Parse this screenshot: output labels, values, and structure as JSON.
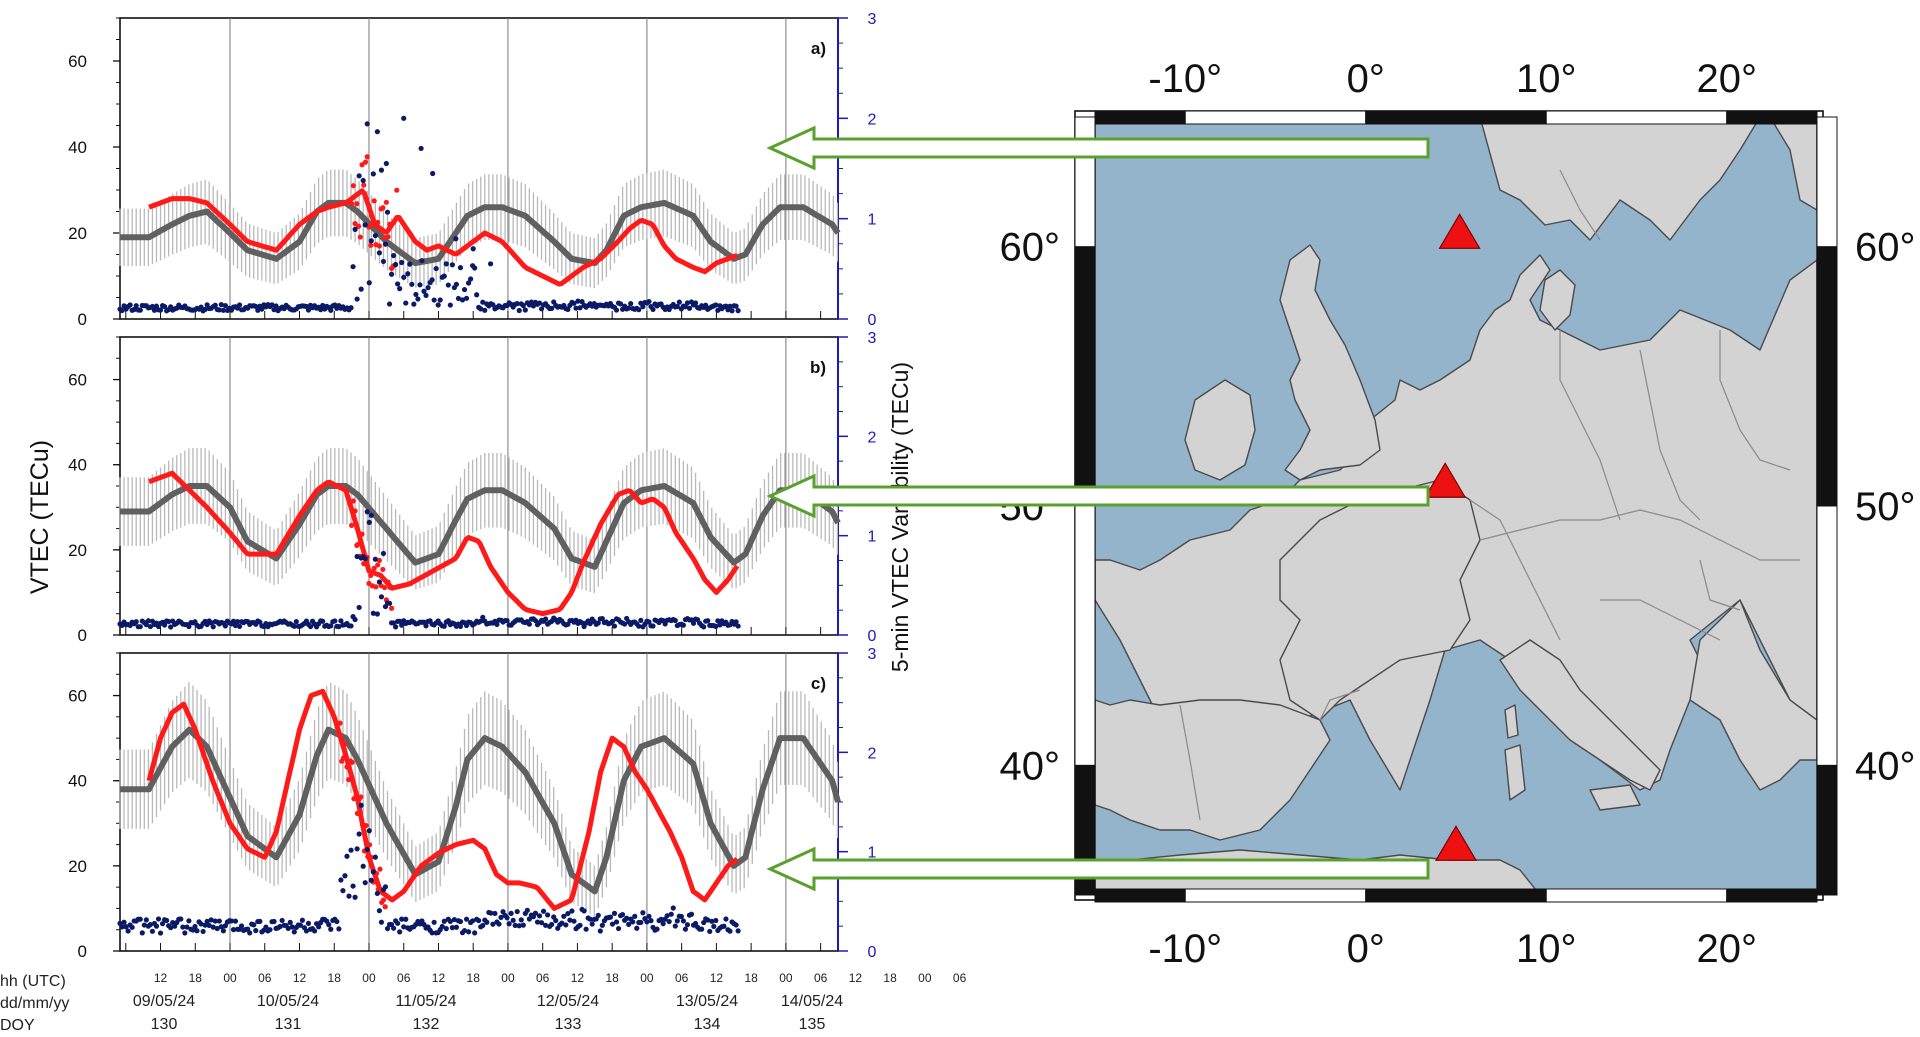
{
  "colors": {
    "vtec": "#ff1a1a",
    "median": "#606060",
    "band": "#b9b9b9",
    "variability": "#0b1a66",
    "right_axis": "#1a1ab8",
    "sea": "#94b4cc",
    "land": "#d3d3d3",
    "border": "#8a8a8a",
    "coast": "#4a4a4a",
    "arrow": "#5aa02c",
    "station": "#ee1111"
  },
  "left_chart": {
    "ylabel": "VTEC (TECu)",
    "ylabel2": "5-min VTEC Variability (TECu)",
    "xaxis_rows": [
      {
        "label": "hh (UTC)"
      },
      {
        "label": "dd/mm/yy"
      },
      {
        "label": "DOY"
      }
    ],
    "hour_ticks": [
      "12",
      "18",
      "00",
      "06",
      "12",
      "18",
      "00",
      "06",
      "12",
      "18",
      "00",
      "06",
      "12",
      "18",
      "00",
      "06",
      "12",
      "18",
      "00",
      "06",
      "12",
      "18",
      "00",
      "06"
    ],
    "day_labels": [
      {
        "date": "09/05/24",
        "doy": "130"
      },
      {
        "date": "10/05/24",
        "doy": "131"
      },
      {
        "date": "11/05/24",
        "doy": "132"
      },
      {
        "date": "12/05/24",
        "doy": "133"
      },
      {
        "date": "13/05/24",
        "doy": "134"
      },
      {
        "date": "14/05/24",
        "doy": "135"
      }
    ],
    "yticks_left": [
      "0",
      "20",
      "40",
      "60"
    ],
    "yticks_right": [
      "0",
      "1",
      "2",
      "3"
    ]
  },
  "chart_data": [
    {
      "type": "line",
      "panel_label": "a)",
      "xlabel": "hh (UTC)",
      "ylabel": "VTEC (TECu)",
      "ylabel2": "5-min VTEC Variability (TECu)",
      "x_range_hours_utc": [
        "09/05/24 05:00",
        "14/05/24 09:00"
      ],
      "ylim": [
        0,
        70
      ],
      "y2lim": [
        0,
        3
      ],
      "grid": "vertical lines at 00 UTC",
      "series": [
        {
          "name": "",
          "axis": "left",
          "kind": "median",
          "x": [
            5,
            9,
            12,
            15,
            19,
            22,
            27,
            31,
            34,
            36,
            39,
            41,
            46,
            51,
            55,
            58,
            60,
            63,
            66,
            70,
            75,
            78,
            82,
            84,
            87,
            90,
            94,
            99,
            102,
            106,
            108,
            111,
            114,
            118,
            123,
            126,
            129
          ],
          "y": [
            19,
            22,
            24,
            25,
            20,
            16,
            14,
            18,
            25,
            27,
            27,
            25,
            18,
            13,
            14,
            20,
            24,
            26,
            26,
            24,
            18,
            14,
            13,
            16,
            24,
            26,
            27,
            24,
            18,
            14,
            15,
            22,
            26,
            26,
            22,
            16,
            14
          ]
        },
        {
          "name": "",
          "axis": "left",
          "kind": "vtec",
          "x": [
            5,
            9,
            12,
            15,
            19,
            22,
            27,
            31,
            34,
            36,
            39,
            40,
            42,
            44,
            46,
            48,
            51,
            53,
            55,
            58,
            60,
            63,
            66,
            68,
            70,
            73,
            76,
            78,
            80,
            83,
            86,
            88,
            90,
            92,
            94,
            96,
            99,
            101,
            103,
            105,
            107
          ],
          "y": [
            26,
            28,
            28,
            27,
            22,
            18,
            16,
            22,
            25,
            26,
            27,
            28,
            30,
            22,
            20,
            24,
            18,
            16,
            17,
            15,
            17,
            20,
            18,
            15,
            12,
            10,
            8,
            10,
            12,
            14,
            18,
            21,
            23,
            22,
            17,
            14,
            12,
            11,
            13,
            14,
            15
          ]
        },
        {
          "name": "",
          "axis": "right",
          "kind": "variability",
          "baseline": 0.08,
          "storm_x": [
            40,
            48
          ],
          "storm_peak": 1.9
        }
      ]
    },
    {
      "type": "line",
      "panel_label": "b)",
      "x_range_hours_utc": [
        "09/05/24 05:00",
        "14/05/24 09:00"
      ],
      "ylim": [
        0,
        70
      ],
      "y2lim": [
        0,
        3
      ],
      "series": [
        {
          "name": "",
          "axis": "left",
          "kind": "median",
          "x": [
            5,
            9,
            12,
            15,
            19,
            22,
            27,
            31,
            34,
            36,
            39,
            41,
            46,
            51,
            55,
            58,
            60,
            63,
            66,
            70,
            75,
            78,
            82,
            84,
            87,
            90,
            94,
            99,
            102,
            106,
            108,
            111,
            114,
            118,
            123,
            126,
            129
          ],
          "y": [
            29,
            33,
            35,
            35,
            30,
            22,
            18,
            26,
            33,
            35,
            35,
            33,
            25,
            17,
            19,
            27,
            32,
            34,
            34,
            31,
            25,
            18,
            16,
            22,
            31,
            34,
            35,
            31,
            23,
            17,
            19,
            28,
            34,
            34,
            29,
            21,
            17
          ]
        },
        {
          "name": "",
          "axis": "left",
          "kind": "vtec",
          "x": [
            5,
            9,
            12,
            15,
            19,
            22,
            27,
            31,
            34,
            36,
            39,
            41,
            43,
            45,
            47,
            50,
            54,
            58,
            60,
            62,
            64,
            67,
            70,
            73,
            76,
            78,
            80,
            83,
            86,
            88,
            90,
            92,
            94,
            96,
            99,
            101,
            103,
            105,
            107
          ],
          "y": [
            36,
            38,
            34,
            30,
            24,
            19,
            19,
            28,
            34,
            36,
            34,
            25,
            15,
            14,
            11,
            12,
            15,
            18,
            23,
            22,
            16,
            10,
            6,
            5,
            6,
            10,
            17,
            26,
            33,
            34,
            31,
            32,
            30,
            24,
            18,
            13,
            10,
            13,
            17
          ]
        },
        {
          "name": "",
          "axis": "right",
          "kind": "variability",
          "baseline": 0.08,
          "storm_x": [
            40,
            47
          ],
          "storm_peak": 1.1
        }
      ]
    },
    {
      "type": "line",
      "panel_label": "c)",
      "x_range_hours_utc": [
        "09/05/24 05:00",
        "14/05/24 09:00"
      ],
      "ylim": [
        0,
        70
      ],
      "y2lim": [
        0,
        3
      ],
      "series": [
        {
          "name": "",
          "axis": "left",
          "kind": "median",
          "x": [
            5,
            9,
            12,
            15,
            19,
            22,
            27,
            31,
            34,
            36,
            39,
            41,
            46,
            51,
            55,
            58,
            60,
            63,
            66,
            70,
            75,
            78,
            82,
            84,
            87,
            90,
            94,
            99,
            102,
            106,
            108,
            111,
            114,
            118,
            123,
            126,
            129
          ],
          "y": [
            38,
            48,
            52,
            48,
            36,
            27,
            22,
            32,
            46,
            52,
            50,
            45,
            30,
            18,
            21,
            34,
            45,
            50,
            48,
            42,
            30,
            18,
            14,
            22,
            40,
            48,
            50,
            44,
            30,
            20,
            22,
            38,
            50,
            50,
            40,
            25,
            18
          ]
        },
        {
          "name": "",
          "axis": "left",
          "kind": "vtec",
          "x": [
            5,
            7,
            9,
            11,
            13,
            16,
            19,
            22,
            25,
            27,
            29,
            31,
            33,
            35,
            37,
            39,
            41,
            43,
            45,
            47,
            49,
            52,
            55,
            58,
            61,
            63,
            65,
            67,
            69,
            72,
            75,
            78,
            81,
            83,
            85,
            87,
            89,
            91,
            93,
            95,
            97,
            99,
            101,
            103,
            105,
            107
          ],
          "y": [
            40,
            50,
            56,
            58,
            52,
            40,
            30,
            24,
            22,
            28,
            40,
            52,
            60,
            61,
            55,
            46,
            36,
            22,
            14,
            12,
            14,
            20,
            23,
            25,
            26,
            24,
            18,
            16,
            16,
            15,
            10,
            12,
            28,
            42,
            50,
            48,
            42,
            38,
            33,
            28,
            22,
            14,
            12,
            16,
            20,
            22
          ]
        },
        {
          "name": "",
          "axis": "right",
          "kind": "variability",
          "baseline": 0.18,
          "storm_x": [
            38,
            46
          ],
          "storm_peak": 1.1
        }
      ]
    }
  ],
  "map": {
    "lon_range": [
      -15,
      25
    ],
    "lat_range": [
      35,
      65
    ],
    "lon_labels": [
      "-10°",
      "0°",
      "10°",
      "20°"
    ],
    "lat_labels": [
      "40°",
      "50°",
      "60°"
    ],
    "stations": [
      {
        "lon": 5.2,
        "lat": 60.4
      },
      {
        "lon": 4.4,
        "lat": 50.8
      },
      {
        "lon": 5.0,
        "lat": 36.8
      }
    ]
  }
}
